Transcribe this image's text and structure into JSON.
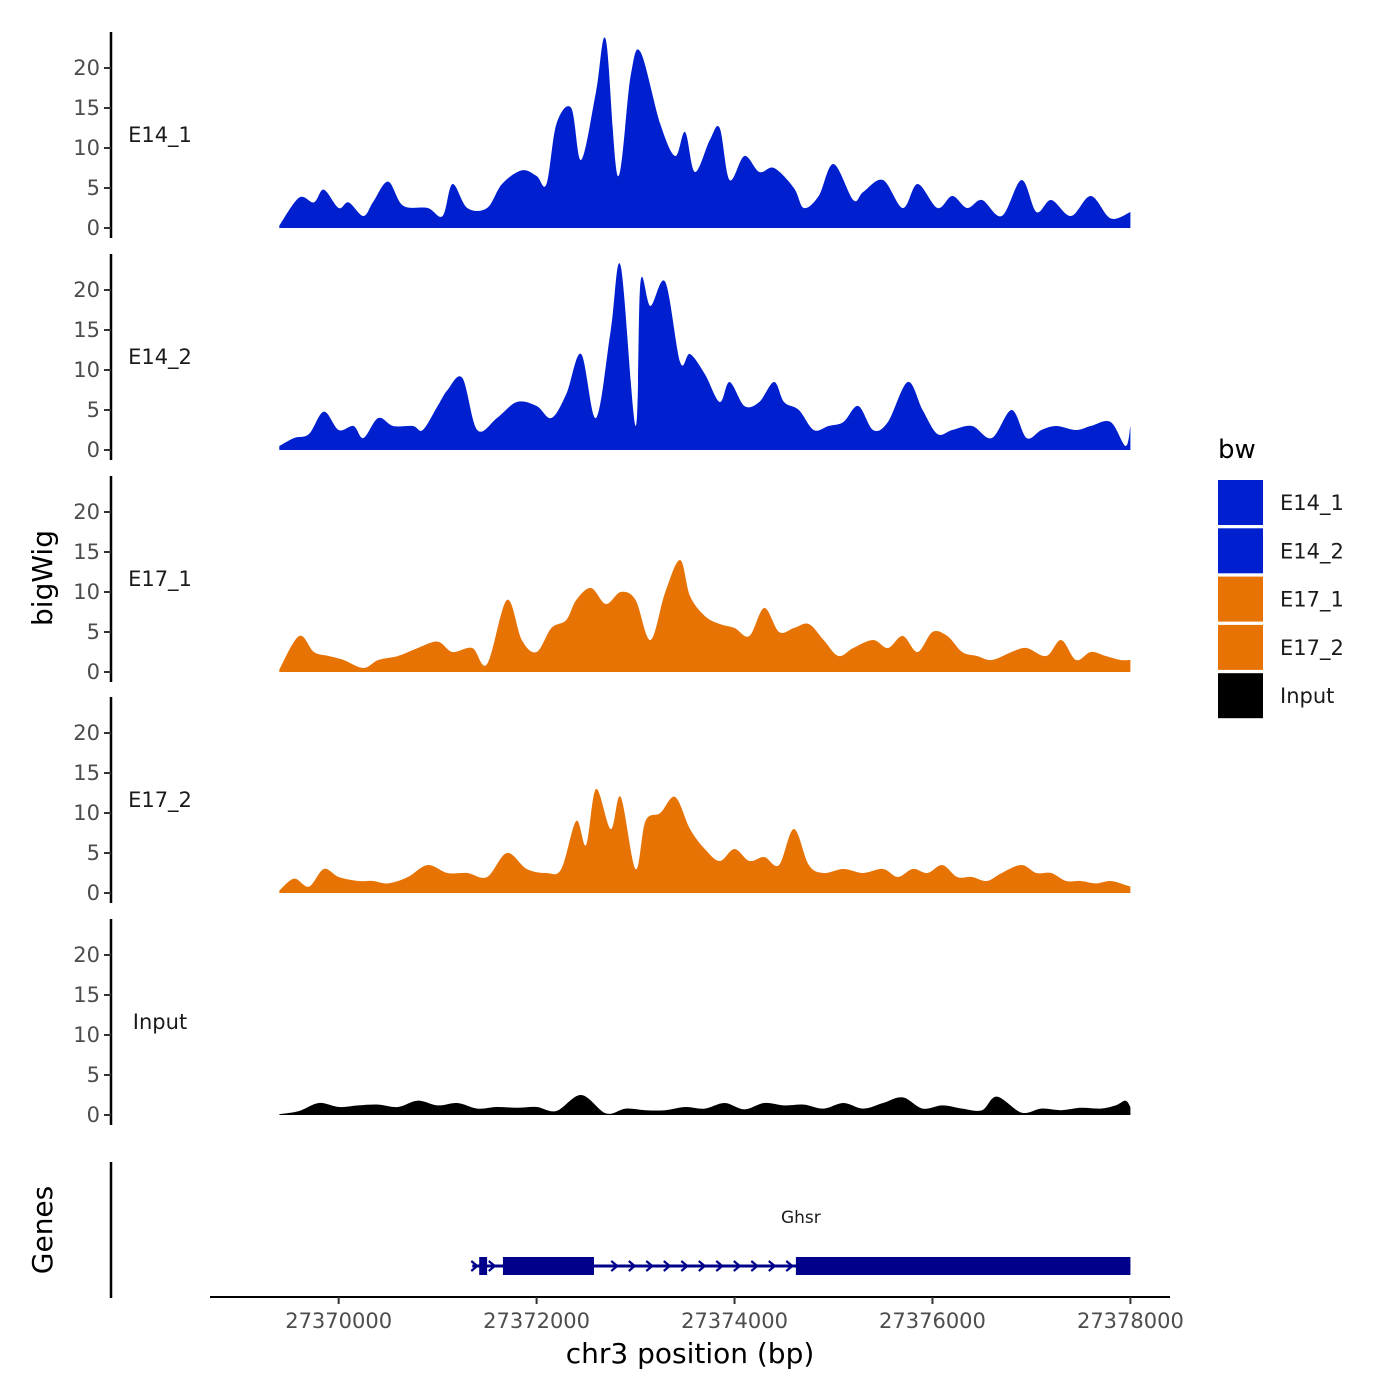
{
  "chart_data": {
    "type": "area",
    "chromosome": "chr3",
    "xlabel": "chr3 position (bp)",
    "ylabel": "bigWig",
    "genes_label": "Genes",
    "xlim": [
      27368700,
      27378400
    ],
    "data_range": [
      27369400,
      27378000
    ],
    "x_ticks": [
      27370000,
      27372000,
      27374000,
      27376000,
      27378000
    ],
    "x_tick_labels": [
      "27370000",
      "27372000",
      "27374000",
      "27376000",
      "27378000"
    ],
    "ylim": [
      0,
      24
    ],
    "y_ticks": [
      0,
      5,
      10,
      15,
      20
    ],
    "y_tick_labels": [
      "0",
      "5",
      "10",
      "15",
      "20"
    ],
    "legend": {
      "title": "bw",
      "entries": [
        {
          "label": "E14_1",
          "color": "#0020d0"
        },
        {
          "label": "E14_2",
          "color": "#0020d0"
        },
        {
          "label": "E17_1",
          "color": "#e87305"
        },
        {
          "label": "E17_2",
          "color": "#e87305"
        },
        {
          "label": "Input",
          "color": "#000000"
        }
      ]
    },
    "series": [
      {
        "name": "E14_1",
        "color": "#0020d0",
        "peaks": [
          [
            27369400,
            0.3
          ],
          [
            27369600,
            3.8
          ],
          [
            27369750,
            3.2
          ],
          [
            27369850,
            4.8
          ],
          [
            27370000,
            2.5
          ],
          [
            27370100,
            3.2
          ],
          [
            27370250,
            1.5
          ],
          [
            27370350,
            3.3
          ],
          [
            27370500,
            5.8
          ],
          [
            27370650,
            2.8
          ],
          [
            27370900,
            2.5
          ],
          [
            27371050,
            1.5
          ],
          [
            27371150,
            5.5
          ],
          [
            27371300,
            2.5
          ],
          [
            27371500,
            2.5
          ],
          [
            27371650,
            5.5
          ],
          [
            27371850,
            7.2
          ],
          [
            27372000,
            6.5
          ],
          [
            27372100,
            5.5
          ],
          [
            27372200,
            13
          ],
          [
            27372350,
            15
          ],
          [
            27372450,
            8.5
          ],
          [
            27372600,
            17
          ],
          [
            27372700,
            23.5
          ],
          [
            27372820,
            6.5
          ],
          [
            27372950,
            19
          ],
          [
            27373050,
            22
          ],
          [
            27373250,
            13
          ],
          [
            27373400,
            9
          ],
          [
            27373500,
            12
          ],
          [
            27373600,
            7
          ],
          [
            27373750,
            11
          ],
          [
            27373850,
            12.5
          ],
          [
            27373950,
            6
          ],
          [
            27374100,
            9
          ],
          [
            27374250,
            7
          ],
          [
            27374400,
            7.5
          ],
          [
            27374600,
            5
          ],
          [
            27374700,
            2.5
          ],
          [
            27374850,
            4
          ],
          [
            27375000,
            8
          ],
          [
            27375200,
            3.5
          ],
          [
            27375300,
            4.5
          ],
          [
            27375500,
            6
          ],
          [
            27375700,
            2.5
          ],
          [
            27375850,
            5.5
          ],
          [
            27376050,
            2.5
          ],
          [
            27376200,
            4
          ],
          [
            27376350,
            2.5
          ],
          [
            27376500,
            3.5
          ],
          [
            27376700,
            1.5
          ],
          [
            27376900,
            6
          ],
          [
            27377050,
            2
          ],
          [
            27377200,
            3.5
          ],
          [
            27377400,
            1.5
          ],
          [
            27377600,
            4
          ],
          [
            27377800,
            1.2
          ],
          [
            27378000,
            2
          ]
        ]
      },
      {
        "name": "E14_2",
        "color": "#0020d0",
        "peaks": [
          [
            27369400,
            0.5
          ],
          [
            27369550,
            1.5
          ],
          [
            27369700,
            2
          ],
          [
            27369850,
            4.8
          ],
          [
            27370000,
            2.5
          ],
          [
            27370150,
            3
          ],
          [
            27370250,
            1.5
          ],
          [
            27370400,
            4
          ],
          [
            27370550,
            3
          ],
          [
            27370750,
            3
          ],
          [
            27370850,
            2.5
          ],
          [
            27371000,
            5.5
          ],
          [
            27371100,
            7.5
          ],
          [
            27371250,
            9
          ],
          [
            27371400,
            2.5
          ],
          [
            27371600,
            4
          ],
          [
            27371800,
            6
          ],
          [
            27372000,
            5.5
          ],
          [
            27372150,
            4
          ],
          [
            27372300,
            7
          ],
          [
            27372450,
            12
          ],
          [
            27372600,
            4
          ],
          [
            27372750,
            15
          ],
          [
            27372850,
            23
          ],
          [
            27373000,
            3
          ],
          [
            27373050,
            21
          ],
          [
            27373150,
            18
          ],
          [
            27373300,
            21
          ],
          [
            27373450,
            11
          ],
          [
            27373550,
            12
          ],
          [
            27373700,
            9.5
          ],
          [
            27373850,
            6
          ],
          [
            27373950,
            8.5
          ],
          [
            27374100,
            5.5
          ],
          [
            27374250,
            6
          ],
          [
            27374400,
            8.5
          ],
          [
            27374500,
            6
          ],
          [
            27374650,
            5
          ],
          [
            27374800,
            2.5
          ],
          [
            27374950,
            3
          ],
          [
            27375100,
            3.5
          ],
          [
            27375250,
            5.5
          ],
          [
            27375400,
            2.5
          ],
          [
            27375550,
            3.5
          ],
          [
            27375750,
            8.5
          ],
          [
            27375900,
            5
          ],
          [
            27376050,
            2
          ],
          [
            27376200,
            2.5
          ],
          [
            27376400,
            3
          ],
          [
            27376600,
            1.5
          ],
          [
            27376800,
            5
          ],
          [
            27376950,
            1.5
          ],
          [
            27377100,
            2.5
          ],
          [
            27377250,
            3
          ],
          [
            27377450,
            2.5
          ],
          [
            27377600,
            3
          ],
          [
            27377800,
            3.5
          ],
          [
            27377950,
            0.5
          ],
          [
            27378000,
            3
          ]
        ]
      },
      {
        "name": "E17_1",
        "color": "#e87305",
        "peaks": [
          [
            27369400,
            0.3
          ],
          [
            27369600,
            4.5
          ],
          [
            27369750,
            2.5
          ],
          [
            27369900,
            2
          ],
          [
            27370050,
            1.5
          ],
          [
            27370250,
            0.5
          ],
          [
            27370400,
            1.5
          ],
          [
            27370600,
            2
          ],
          [
            27370800,
            3
          ],
          [
            27371000,
            3.8
          ],
          [
            27371150,
            2.5
          ],
          [
            27371350,
            3
          ],
          [
            27371500,
            1
          ],
          [
            27371700,
            9
          ],
          [
            27371850,
            4
          ],
          [
            27372000,
            2.5
          ],
          [
            27372150,
            5.5
          ],
          [
            27372300,
            6.5
          ],
          [
            27372400,
            9
          ],
          [
            27372550,
            10.5
          ],
          [
            27372700,
            8.5
          ],
          [
            27372850,
            10
          ],
          [
            27373000,
            9
          ],
          [
            27373150,
            4
          ],
          [
            27373300,
            10
          ],
          [
            27373450,
            14
          ],
          [
            27373550,
            9.5
          ],
          [
            27373700,
            7
          ],
          [
            27373850,
            6
          ],
          [
            27374000,
            5.5
          ],
          [
            27374150,
            4.5
          ],
          [
            27374300,
            8
          ],
          [
            27374450,
            5
          ],
          [
            27374600,
            5.5
          ],
          [
            27374750,
            6
          ],
          [
            27374900,
            4
          ],
          [
            27375050,
            2
          ],
          [
            27375200,
            3
          ],
          [
            27375400,
            4
          ],
          [
            27375550,
            3
          ],
          [
            27375700,
            4.5
          ],
          [
            27375850,
            2.5
          ],
          [
            27376000,
            5
          ],
          [
            27376150,
            4.5
          ],
          [
            27376300,
            2.5
          ],
          [
            27376450,
            2
          ],
          [
            27376600,
            1.5
          ],
          [
            27376800,
            2.5
          ],
          [
            27376950,
            3
          ],
          [
            27377150,
            2
          ],
          [
            27377300,
            4
          ],
          [
            27377450,
            1.5
          ],
          [
            27377600,
            2.5
          ],
          [
            27377750,
            2
          ],
          [
            27377900,
            1.5
          ],
          [
            27378000,
            1.5
          ]
        ]
      },
      {
        "name": "E17_2",
        "color": "#e87305",
        "peaks": [
          [
            27369400,
            0.3
          ],
          [
            27369550,
            1.8
          ],
          [
            27369700,
            0.8
          ],
          [
            27369850,
            3
          ],
          [
            27370000,
            2
          ],
          [
            27370200,
            1.5
          ],
          [
            27370350,
            1.5
          ],
          [
            27370500,
            1.2
          ],
          [
            27370700,
            2
          ],
          [
            27370900,
            3.5
          ],
          [
            27371100,
            2.5
          ],
          [
            27371300,
            2.5
          ],
          [
            27371500,
            2
          ],
          [
            27371700,
            5
          ],
          [
            27371900,
            3
          ],
          [
            27372100,
            2.5
          ],
          [
            27372250,
            3
          ],
          [
            27372400,
            9
          ],
          [
            27372500,
            6
          ],
          [
            27372600,
            13
          ],
          [
            27372750,
            8
          ],
          [
            27372850,
            12
          ],
          [
            27373000,
            3
          ],
          [
            27373100,
            9
          ],
          [
            27373250,
            10
          ],
          [
            27373400,
            12
          ],
          [
            27373550,
            8
          ],
          [
            27373700,
            5.5
          ],
          [
            27373850,
            4
          ],
          [
            27374000,
            5.5
          ],
          [
            27374150,
            4
          ],
          [
            27374300,
            4.5
          ],
          [
            27374450,
            3.5
          ],
          [
            27374600,
            8
          ],
          [
            27374750,
            3.5
          ],
          [
            27374900,
            2.5
          ],
          [
            27375100,
            3
          ],
          [
            27375300,
            2.5
          ],
          [
            27375500,
            3
          ],
          [
            27375650,
            2
          ],
          [
            27375800,
            3
          ],
          [
            27375950,
            2.5
          ],
          [
            27376100,
            3.5
          ],
          [
            27376250,
            2
          ],
          [
            27376400,
            2
          ],
          [
            27376550,
            1.5
          ],
          [
            27376700,
            2.5
          ],
          [
            27376900,
            3.5
          ],
          [
            27377050,
            2.5
          ],
          [
            27377200,
            2.5
          ],
          [
            27377350,
            1.5
          ],
          [
            27377500,
            1.5
          ],
          [
            27377650,
            1.2
          ],
          [
            27377800,
            1.5
          ],
          [
            27377950,
            1
          ],
          [
            27378000,
            0.8
          ]
        ]
      },
      {
        "name": "Input",
        "color": "#000000",
        "peaks": [
          [
            27369400,
            0.1
          ],
          [
            27369600,
            0.5
          ],
          [
            27369800,
            1.5
          ],
          [
            27370000,
            1
          ],
          [
            27370200,
            1.2
          ],
          [
            27370400,
            1.3
          ],
          [
            27370600,
            1
          ],
          [
            27370800,
            1.8
          ],
          [
            27371000,
            1.2
          ],
          [
            27371200,
            1.5
          ],
          [
            27371400,
            0.8
          ],
          [
            27371600,
            1
          ],
          [
            27371800,
            0.9
          ],
          [
            27372000,
            1
          ],
          [
            27372200,
            0.5
          ],
          [
            27372450,
            2.5
          ],
          [
            27372700,
            0.2
          ],
          [
            27372900,
            0.8
          ],
          [
            27373100,
            0.6
          ],
          [
            27373300,
            0.6
          ],
          [
            27373500,
            1
          ],
          [
            27373700,
            0.8
          ],
          [
            27373900,
            1.5
          ],
          [
            27374100,
            0.7
          ],
          [
            27374300,
            1.5
          ],
          [
            27374500,
            1.2
          ],
          [
            27374700,
            1.3
          ],
          [
            27374900,
            0.8
          ],
          [
            27375100,
            1.5
          ],
          [
            27375300,
            0.8
          ],
          [
            27375500,
            1.5
          ],
          [
            27375700,
            2.2
          ],
          [
            27375900,
            0.8
          ],
          [
            27376100,
            1.2
          ],
          [
            27376300,
            0.8
          ],
          [
            27376500,
            0.6
          ],
          [
            27376650,
            2.3
          ],
          [
            27376900,
            0.3
          ],
          [
            27377100,
            0.8
          ],
          [
            27377300,
            0.6
          ],
          [
            27377500,
            0.9
          ],
          [
            27377700,
            0.8
          ],
          [
            27377850,
            1.2
          ],
          [
            27377950,
            1.8
          ],
          [
            27378000,
            1
          ]
        ]
      }
    ],
    "gene_track": {
      "gene": "Ghsr",
      "color": "#00008b",
      "start": 27371350,
      "end": 27378000,
      "exons": [
        [
          27371420,
          27371500
        ],
        [
          27371660,
          27372580
        ],
        [
          27374620,
          27378000
        ]
      ]
    }
  }
}
